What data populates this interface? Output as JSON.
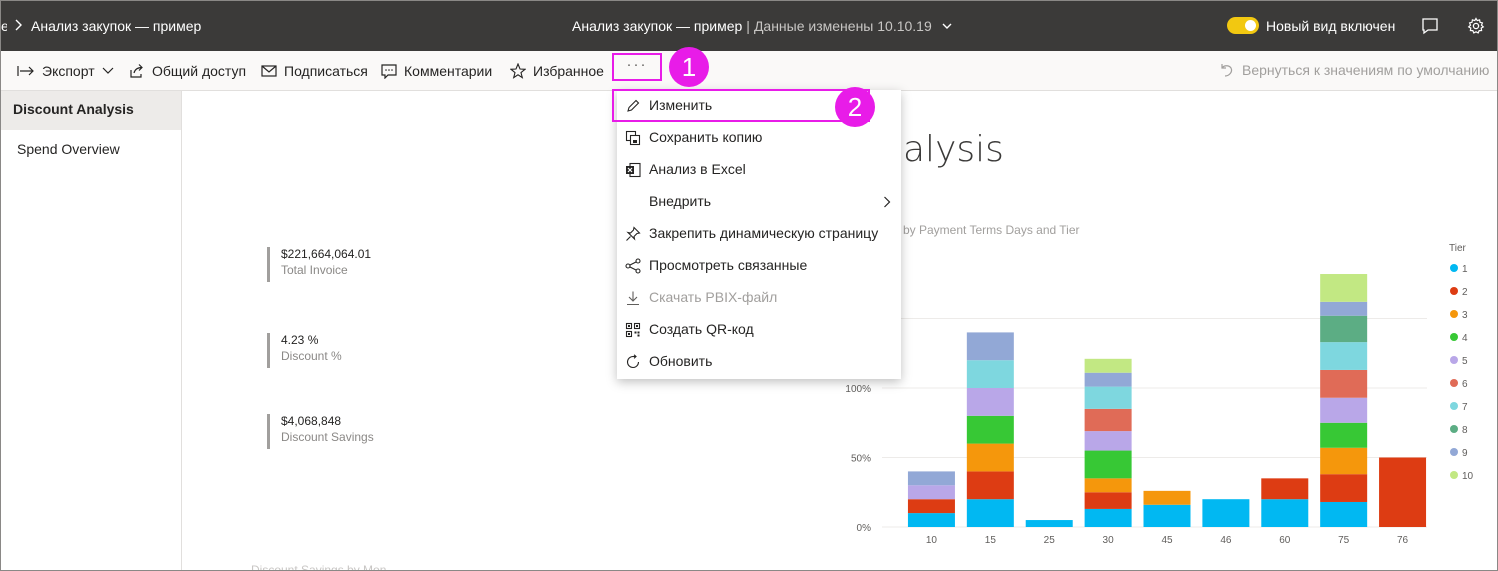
{
  "topbar": {
    "breadcrumb_trail": "e",
    "breadcrumb": "Анализ закупок — пример",
    "title": "Анализ закупок — пример",
    "separator": "|",
    "modified": "Данные изменены 10.10.19",
    "toggle_label": "Новый вид включен",
    "toggle_on": true
  },
  "actionbar": {
    "export": "Экспорт",
    "share": "Общий доступ",
    "subscribe": "Подписаться",
    "comments": "Комментарии",
    "favorites": "Избранное",
    "more": "···",
    "reset": "Вернуться к значениям по умолчанию"
  },
  "badges": {
    "first": "1",
    "second": "2"
  },
  "menu": {
    "items": [
      {
        "label": "Изменить",
        "icon": "pencil-icon"
      },
      {
        "label": "Сохранить копию",
        "icon": "save-copy-icon"
      },
      {
        "label": "Анализ в Excel",
        "icon": "excel-icon"
      },
      {
        "label": "Внедрить",
        "icon": "none",
        "submenu": true
      },
      {
        "label": "Закрепить динамическую страницу",
        "icon": "pin-icon"
      },
      {
        "label": "Просмотреть связанные",
        "icon": "related-icon"
      },
      {
        "label": "Скачать PBIX-файл",
        "icon": "download-icon",
        "disabled": true
      },
      {
        "label": "Создать QR-код",
        "icon": "qr-icon"
      },
      {
        "label": "Обновить",
        "icon": "refresh-icon"
      }
    ]
  },
  "sidebar": {
    "pages": [
      {
        "label": "Discount Analysis",
        "active": true
      },
      {
        "label": "Spend Overview"
      }
    ]
  },
  "kpis": [
    {
      "value": "$221,664,064.01",
      "label": "Total Invoice"
    },
    {
      "value": "4.23 %",
      "label": "Discount %"
    },
    {
      "value": "$4,068,848",
      "label": "Discount Savings"
    }
  ],
  "report": {
    "title_fragment": "alysis",
    "chart_subtitle_fragment": "by Payment Terms Days and Tier",
    "bottom_title_fragment": "Discount Savings by Mon"
  },
  "chart_data": {
    "type": "bar",
    "stacked": true,
    "categories": [
      "10",
      "15",
      "25",
      "30",
      "45",
      "46",
      "60",
      "75",
      "76"
    ],
    "y_tick_labels": [
      "0%",
      "50%",
      "100%"
    ],
    "legend_title": "Tier",
    "legend_position": "right",
    "series": [
      {
        "name": "1",
        "color": "#01b8f2",
        "values": [
          10,
          20,
          5,
          13,
          16,
          20,
          20,
          18,
          0
        ]
      },
      {
        "name": "2",
        "color": "#dd3c13",
        "values": [
          10,
          20,
          0,
          12,
          0,
          0,
          15,
          20,
          50
        ]
      },
      {
        "name": "3",
        "color": "#f5970c",
        "values": [
          0,
          20,
          0,
          10,
          10,
          0,
          0,
          19,
          0
        ]
      },
      {
        "name": "4",
        "color": "#37c835",
        "values": [
          0,
          20,
          0,
          20,
          0,
          0,
          0,
          18,
          0
        ]
      },
      {
        "name": "5",
        "color": "#b9a7e8",
        "values": [
          10,
          20,
          0,
          14,
          0,
          0,
          0,
          18,
          0
        ]
      },
      {
        "name": "6",
        "color": "#e06b57",
        "values": [
          0,
          0,
          0,
          16,
          0,
          0,
          0,
          20,
          0
        ]
      },
      {
        "name": "7",
        "color": "#7ed7df",
        "values": [
          0,
          20,
          0,
          16,
          0,
          0,
          0,
          20,
          0
        ]
      },
      {
        "name": "8",
        "color": "#5cad84",
        "values": [
          0,
          0,
          0,
          0,
          0,
          0,
          0,
          19,
          0
        ]
      },
      {
        "name": "9",
        "color": "#92a8d6",
        "values": [
          10,
          20,
          0,
          10,
          0,
          0,
          0,
          10,
          0
        ]
      },
      {
        "name": "10",
        "color": "#c2e883",
        "values": [
          0,
          0,
          0,
          10,
          0,
          0,
          0,
          20,
          0
        ]
      }
    ],
    "ylim": [
      0,
      200
    ],
    "grid": true
  }
}
